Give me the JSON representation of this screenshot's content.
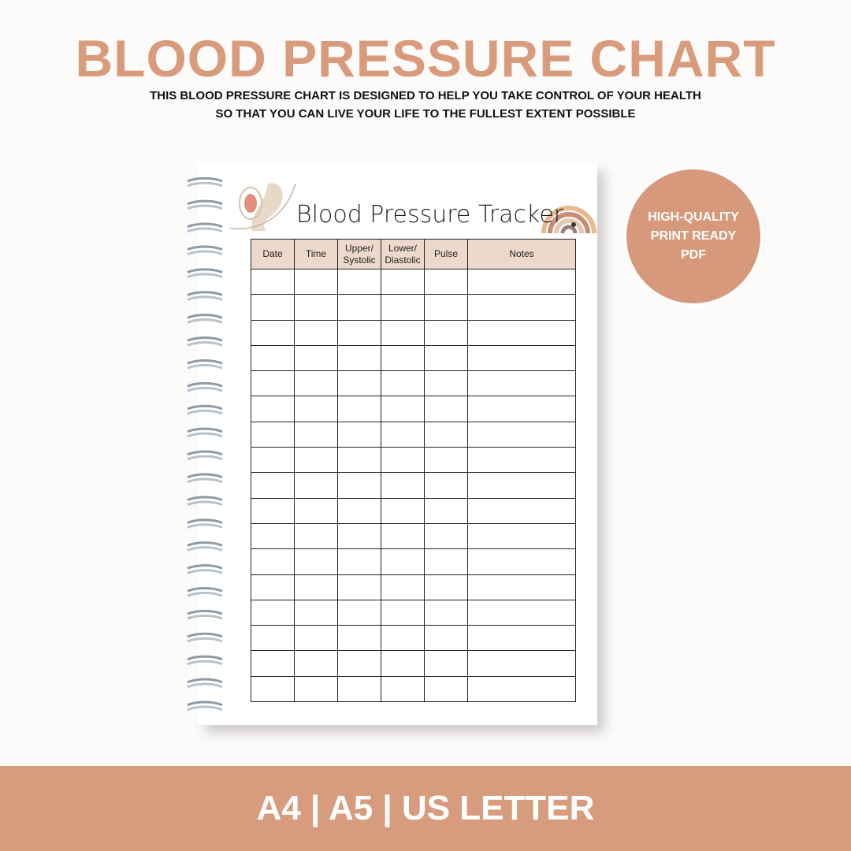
{
  "header": {
    "title": "BLOOD PRESSURE CHART",
    "subtitle": [
      "THIS BLOOD PRESSURE CHART IS DESIGNED TO HELP YOU TAKE CONTROL OF YOUR HEALTH",
      "SO THAT YOU CAN LIVE YOUR LIFE TO THE FULLEST EXTENT POSSIBLE"
    ]
  },
  "page": {
    "title": "Blood Pressure Tracker",
    "table": {
      "columns": [
        "Date",
        "Time",
        "Upper/ Systolic",
        "Lower/ Diastolic",
        "Pulse",
        "Notes"
      ]
    }
  },
  "badge": {
    "lines": [
      "HIGH-QUALITY",
      "PRINT READY",
      "PDF"
    ]
  },
  "footer": {
    "text": "A4 | A5 | US LETTER"
  }
}
